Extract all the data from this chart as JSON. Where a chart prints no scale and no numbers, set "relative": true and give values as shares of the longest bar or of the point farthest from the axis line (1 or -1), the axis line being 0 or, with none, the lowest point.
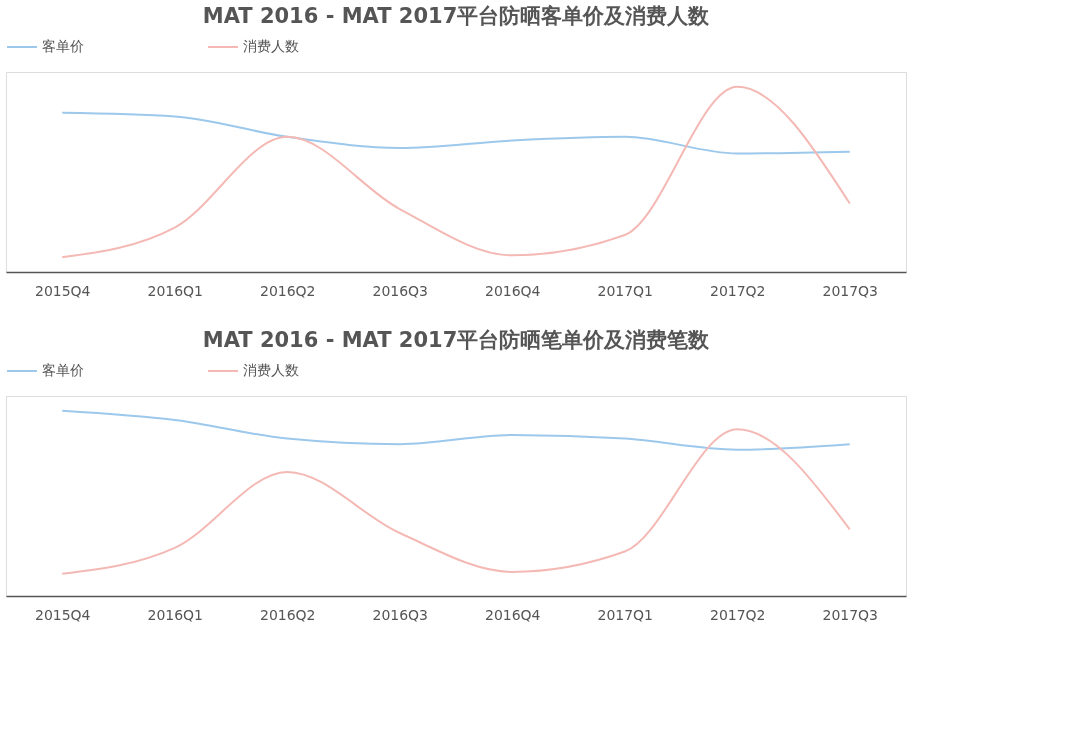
{
  "chart_data": [
    {
      "type": "line",
      "title": "MAT 2016 - MAT 2017平台防晒客单价及消费人数",
      "relative": true,
      "grid": false,
      "legend": "top",
      "marker": "none",
      "line_style": "solid",
      "categories": [
        "2015Q4",
        "2016Q1",
        "2016Q2",
        "2016Q3",
        "2016Q4",
        "2017Q1",
        "2017Q2",
        "2017Q3"
      ],
      "series": [
        {
          "name": "客单价",
          "color": "#9cc8ec",
          "values": [
            0.86,
            0.84,
            0.73,
            0.67,
            0.71,
            0.73,
            0.64,
            0.65
          ]
        },
        {
          "name": "消费人数",
          "color": "#f4b9b4",
          "values": [
            0.08,
            0.24,
            0.73,
            0.34,
            0.09,
            0.2,
            1.0,
            0.37
          ]
        }
      ]
    },
    {
      "type": "line",
      "title": "MAT 2016 - MAT 2017平台防晒笔单价及消费笔数",
      "relative": true,
      "grid": false,
      "legend": "top",
      "marker": "none",
      "line_style": "solid",
      "categories": [
        "2015Q4",
        "2016Q1",
        "2016Q2",
        "2016Q3",
        "2016Q4",
        "2017Q1",
        "2017Q2",
        "2017Q3"
      ],
      "series": [
        {
          "name": "客单价",
          "color": "#9cc8ec",
          "values": [
            1.0,
            0.95,
            0.85,
            0.82,
            0.87,
            0.85,
            0.79,
            0.82
          ]
        },
        {
          "name": "消费人数",
          "color": "#f4b9b4",
          "values": [
            0.12,
            0.26,
            0.67,
            0.34,
            0.13,
            0.24,
            0.9,
            0.36
          ]
        }
      ]
    }
  ]
}
